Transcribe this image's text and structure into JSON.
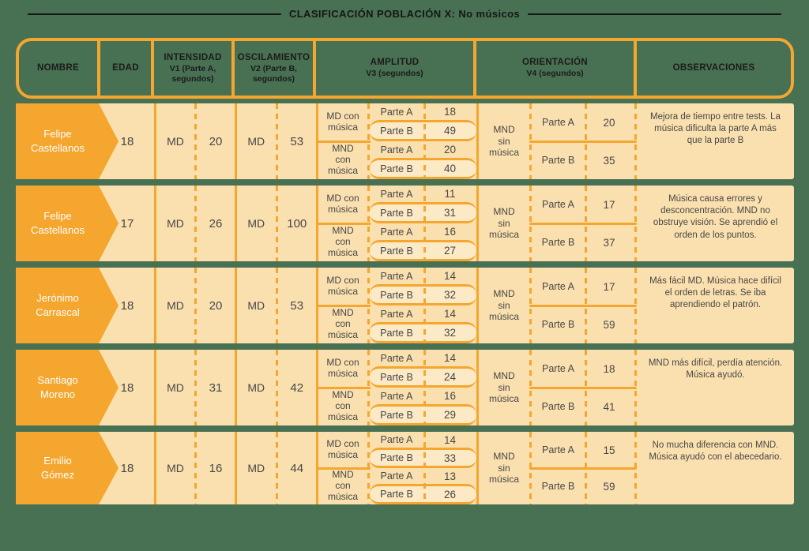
{
  "title": "CLASIFICACIÓN POBLACIÓN X: No músicos",
  "colors": {
    "accent": "#F4A62F",
    "green": "#487053",
    "peach": "#FBE0AF",
    "box_peach": "#FCE9C5",
    "text_dark": "#474747",
    "title_color": "#161616",
    "name_text": "#FFFFFF"
  },
  "header": {
    "nombre": "NOMBRE",
    "edad": "EDAD",
    "intensidad_title": "INTENSIDAD",
    "intensidad_sub": "V1 (Parte A,\nsegundos)",
    "oscilamiento_title": "OSCILAMIENTO",
    "oscilamiento_sub": "V2 (Parte B,\nsegundos)",
    "amplitud_title": "AMPLITUD",
    "amplitud_sub": "V3 (segundos)",
    "orientacion_title": "ORIENTACIÓN",
    "orientacion_sub": "V4 (segundos)",
    "observaciones": "OBSERVACIONES"
  },
  "rows": [
    {
      "name": "Felipe\nCastellanos",
      "edad": "18",
      "v1_label": "MD",
      "v1_value": "20",
      "v2_label": "MD",
      "v2_value": "53",
      "amp": [
        {
          "group": "MD con\nmúsica",
          "parts": [
            {
              "label": "Parte A",
              "value": "18"
            },
            {
              "label": "Parte B",
              "value": "49"
            }
          ]
        },
        {
          "group": "MND\ncon\nmúsica",
          "parts": [
            {
              "label": "Parte A",
              "value": "20"
            },
            {
              "label": "Parte B",
              "value": "40"
            }
          ]
        }
      ],
      "ori": {
        "group": "MND\nsin\nmúsica",
        "parts": [
          {
            "label": "Parte A",
            "value": "20"
          },
          {
            "label": "Parte B",
            "value": "35"
          }
        ]
      },
      "obs": "Mejora de tiempo entre tests. La música dificulta la parte A más que la parte B"
    },
    {
      "name": "Felipe\nCastellanos",
      "edad": "17",
      "v1_label": "MD",
      "v1_value": "26",
      "v2_label": "MD",
      "v2_value": "100",
      "amp": [
        {
          "group": "MD con\nmúsica",
          "parts": [
            {
              "label": "Parte A",
              "value": "11"
            },
            {
              "label": "Parte B",
              "value": "31"
            }
          ]
        },
        {
          "group": "MND\ncon\nmúsica",
          "parts": [
            {
              "label": "Parte A",
              "value": "16"
            },
            {
              "label": "Parte B",
              "value": "27"
            }
          ]
        }
      ],
      "ori": {
        "group": "MND\nsin\nmúsica",
        "parts": [
          {
            "label": "Parte A",
            "value": "17"
          },
          {
            "label": "Parte B",
            "value": "37"
          }
        ]
      },
      "obs": "Música causa errores y desconcentración. MND no obstruye visión. Se aprendió el orden de los puntos."
    },
    {
      "name": "Jerónimo\nCarrascal",
      "edad": "18",
      "v1_label": "MD",
      "v1_value": "20",
      "v2_label": "MD",
      "v2_value": "53",
      "amp": [
        {
          "group": "MD con\nmúsica",
          "parts": [
            {
              "label": "Parte A",
              "value": "14"
            },
            {
              "label": "Parte B",
              "value": "32"
            }
          ]
        },
        {
          "group": "MND\ncon\nmúsica",
          "parts": [
            {
              "label": "Parte A",
              "value": "14"
            },
            {
              "label": "Parte B",
              "value": "32"
            }
          ]
        }
      ],
      "ori": {
        "group": "MND\nsin\nmúsica",
        "parts": [
          {
            "label": "Parte A",
            "value": "17"
          },
          {
            "label": "Parte B",
            "value": "59"
          }
        ]
      },
      "obs": "Más fácil MD. Música hace difícil el orden de letras. Se iba aprendiendo el patrón."
    },
    {
      "name": "Santiago\nMoreno",
      "edad": "18",
      "v1_label": "MD",
      "v1_value": "31",
      "v2_label": "MD",
      "v2_value": "42",
      "amp": [
        {
          "group": "MD con\nmúsica",
          "parts": [
            {
              "label": "Parte A",
              "value": "14"
            },
            {
              "label": "Parte B",
              "value": "24"
            }
          ]
        },
        {
          "group": "MND\ncon\nmúsica",
          "parts": [
            {
              "label": "Parte A",
              "value": "16"
            },
            {
              "label": "Parte B",
              "value": "29"
            }
          ]
        }
      ],
      "ori": {
        "group": "MND\nsin\nmúsica",
        "parts": [
          {
            "label": "Parte A",
            "value": "18"
          },
          {
            "label": "Parte B",
            "value": "41"
          }
        ]
      },
      "obs": "MND más difícil, perdía atención. Música ayudó."
    },
    {
      "name": "Emilio\nGómez",
      "edad": "18",
      "v1_label": "MD",
      "v1_value": "16",
      "v2_label": "MD",
      "v2_value": "44",
      "amp": [
        {
          "group": "MD con\nmúsica",
          "parts": [
            {
              "label": "Parte A",
              "value": "14"
            },
            {
              "label": "Parte B",
              "value": "33"
            }
          ]
        },
        {
          "group": "MND\ncon\nmúsica",
          "parts": [
            {
              "label": "Parte A",
              "value": "13"
            },
            {
              "label": "Parte B",
              "value": "26"
            }
          ]
        }
      ],
      "ori": {
        "group": "MND\nsin\nmúsica",
        "parts": [
          {
            "label": "Parte A",
            "value": "15"
          },
          {
            "label": "Parte B",
            "value": "59"
          }
        ]
      },
      "obs": "No mucha diferencia con MND. Música ayudó con el abecedario."
    }
  ]
}
